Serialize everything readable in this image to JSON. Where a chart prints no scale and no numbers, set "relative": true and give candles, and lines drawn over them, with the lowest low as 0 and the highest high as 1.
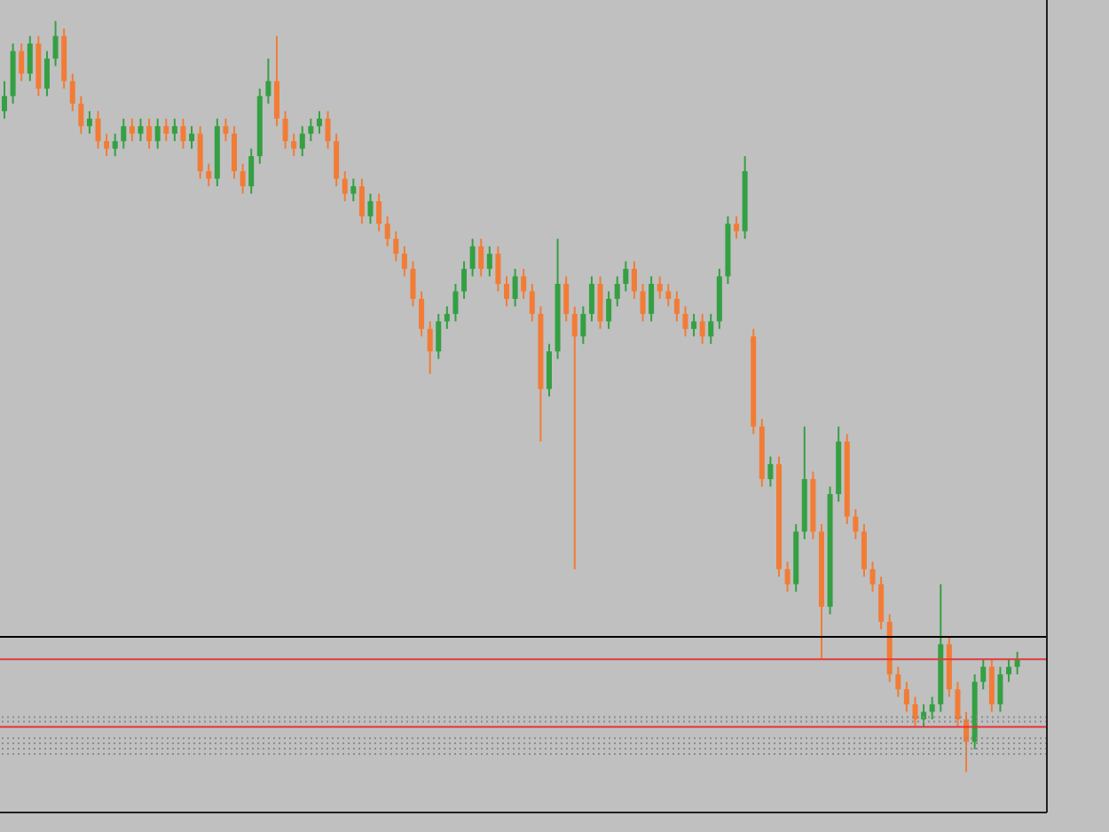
{
  "chart_data": {
    "type": "candlestick",
    "relative": true,
    "categories": [
      null,
      null,
      null,
      null,
      null,
      null,
      null,
      null,
      null,
      null,
      null,
      null,
      null,
      null,
      null,
      null,
      null,
      null,
      null,
      null,
      null,
      null,
      null,
      null,
      null,
      null,
      null,
      null,
      null,
      null,
      null,
      null,
      null,
      null,
      null,
      null,
      null,
      null,
      null,
      null,
      null,
      null,
      null,
      null,
      null,
      null,
      null,
      null,
      null,
      null,
      null,
      null,
      null,
      null,
      null,
      null,
      null,
      null,
      null,
      null,
      null,
      null,
      null,
      null,
      null,
      null,
      null,
      null,
      null,
      null,
      null,
      null,
      null,
      null,
      null,
      null,
      null,
      null,
      null,
      null,
      null,
      null,
      null,
      null,
      null,
      null,
      null,
      null,
      null,
      null,
      null,
      null,
      null,
      null,
      null,
      null,
      null,
      null,
      null,
      null,
      null,
      null,
      null,
      null,
      null,
      null,
      null,
      null,
      null,
      null,
      null,
      null,
      null,
      null,
      null,
      null,
      null,
      null,
      null,
      null,
      null,
      null,
      null
    ],
    "ohlc": [
      [
        0.88,
        0.92,
        0.87,
        0.9
      ],
      [
        0.9,
        0.97,
        0.89,
        0.96
      ],
      [
        0.96,
        0.97,
        0.92,
        0.93
      ],
      [
        0.93,
        0.98,
        0.92,
        0.97
      ],
      [
        0.97,
        0.98,
        0.9,
        0.91
      ],
      [
        0.91,
        0.96,
        0.9,
        0.95
      ],
      [
        0.95,
        1.0,
        0.94,
        0.98
      ],
      [
        0.98,
        0.99,
        0.91,
        0.92
      ],
      [
        0.92,
        0.93,
        0.88,
        0.89
      ],
      [
        0.89,
        0.9,
        0.85,
        0.86
      ],
      [
        0.86,
        0.88,
        0.85,
        0.87
      ],
      [
        0.87,
        0.88,
        0.83,
        0.84
      ],
      [
        0.84,
        0.85,
        0.82,
        0.83
      ],
      [
        0.83,
        0.85,
        0.82,
        0.84
      ],
      [
        0.84,
        0.87,
        0.83,
        0.86
      ],
      [
        0.86,
        0.87,
        0.84,
        0.85
      ],
      [
        0.85,
        0.87,
        0.84,
        0.86
      ],
      [
        0.86,
        0.87,
        0.83,
        0.84
      ],
      [
        0.84,
        0.87,
        0.83,
        0.86
      ],
      [
        0.86,
        0.87,
        0.84,
        0.85
      ],
      [
        0.85,
        0.87,
        0.84,
        0.86
      ],
      [
        0.86,
        0.87,
        0.83,
        0.84
      ],
      [
        0.84,
        0.86,
        0.83,
        0.85
      ],
      [
        0.85,
        0.86,
        0.79,
        0.8
      ],
      [
        0.8,
        0.81,
        0.78,
        0.79
      ],
      [
        0.79,
        0.87,
        0.78,
        0.86
      ],
      [
        0.86,
        0.87,
        0.84,
        0.85
      ],
      [
        0.85,
        0.86,
        0.79,
        0.8
      ],
      [
        0.8,
        0.81,
        0.77,
        0.78
      ],
      [
        0.78,
        0.83,
        0.77,
        0.82
      ],
      [
        0.82,
        0.91,
        0.81,
        0.9
      ],
      [
        0.9,
        0.95,
        0.89,
        0.92
      ],
      [
        0.92,
        0.98,
        0.86,
        0.87
      ],
      [
        0.87,
        0.88,
        0.83,
        0.84
      ],
      [
        0.84,
        0.85,
        0.82,
        0.83
      ],
      [
        0.83,
        0.86,
        0.82,
        0.85
      ],
      [
        0.85,
        0.87,
        0.84,
        0.86
      ],
      [
        0.86,
        0.88,
        0.85,
        0.87
      ],
      [
        0.87,
        0.88,
        0.83,
        0.84
      ],
      [
        0.84,
        0.85,
        0.78,
        0.79
      ],
      [
        0.79,
        0.8,
        0.76,
        0.77
      ],
      [
        0.77,
        0.79,
        0.76,
        0.78
      ],
      [
        0.78,
        0.79,
        0.73,
        0.74
      ],
      [
        0.74,
        0.77,
        0.73,
        0.76
      ],
      [
        0.76,
        0.77,
        0.72,
        0.73
      ],
      [
        0.73,
        0.74,
        0.7,
        0.71
      ],
      [
        0.71,
        0.72,
        0.68,
        0.69
      ],
      [
        0.69,
        0.7,
        0.66,
        0.67
      ],
      [
        0.67,
        0.68,
        0.62,
        0.63
      ],
      [
        0.63,
        0.64,
        0.58,
        0.59
      ],
      [
        0.59,
        0.6,
        0.53,
        0.56
      ],
      [
        0.56,
        0.61,
        0.55,
        0.6
      ],
      [
        0.6,
        0.62,
        0.59,
        0.61
      ],
      [
        0.61,
        0.65,
        0.6,
        0.64
      ],
      [
        0.64,
        0.68,
        0.63,
        0.67
      ],
      [
        0.67,
        0.71,
        0.66,
        0.7
      ],
      [
        0.7,
        0.71,
        0.66,
        0.67
      ],
      [
        0.67,
        0.7,
        0.66,
        0.69
      ],
      [
        0.69,
        0.7,
        0.64,
        0.65
      ],
      [
        0.65,
        0.66,
        0.62,
        0.63
      ],
      [
        0.63,
        0.67,
        0.62,
        0.66
      ],
      [
        0.66,
        0.67,
        0.63,
        0.64
      ],
      [
        0.64,
        0.65,
        0.6,
        0.61
      ],
      [
        0.61,
        0.62,
        0.44,
        0.51
      ],
      [
        0.51,
        0.57,
        0.5,
        0.56
      ],
      [
        0.56,
        0.71,
        0.55,
        0.65
      ],
      [
        0.65,
        0.66,
        0.6,
        0.61
      ],
      [
        0.61,
        0.62,
        0.27,
        0.58
      ],
      [
        0.58,
        0.62,
        0.57,
        0.61
      ],
      [
        0.61,
        0.66,
        0.6,
        0.65
      ],
      [
        0.65,
        0.66,
        0.59,
        0.6
      ],
      [
        0.6,
        0.64,
        0.59,
        0.63
      ],
      [
        0.63,
        0.66,
        0.62,
        0.65
      ],
      [
        0.65,
        0.68,
        0.64,
        0.67
      ],
      [
        0.67,
        0.68,
        0.63,
        0.64
      ],
      [
        0.64,
        0.65,
        0.6,
        0.61
      ],
      [
        0.61,
        0.66,
        0.6,
        0.65
      ],
      [
        0.65,
        0.66,
        0.63,
        0.64
      ],
      [
        0.64,
        0.65,
        0.62,
        0.63
      ],
      [
        0.63,
        0.64,
        0.6,
        0.61
      ],
      [
        0.61,
        0.62,
        0.58,
        0.59
      ],
      [
        0.59,
        0.61,
        0.58,
        0.6
      ],
      [
        0.6,
        0.61,
        0.57,
        0.58
      ],
      [
        0.58,
        0.61,
        0.57,
        0.6
      ],
      [
        0.6,
        0.67,
        0.59,
        0.66
      ],
      [
        0.66,
        0.74,
        0.65,
        0.73
      ],
      [
        0.73,
        0.74,
        0.71,
        0.72
      ],
      [
        0.72,
        0.82,
        0.71,
        0.8
      ],
      [
        0.58,
        0.59,
        0.45,
        0.46
      ],
      [
        0.46,
        0.47,
        0.38,
        0.39
      ],
      [
        0.39,
        0.42,
        0.38,
        0.41
      ],
      [
        0.41,
        0.42,
        0.26,
        0.27
      ],
      [
        0.27,
        0.28,
        0.24,
        0.25
      ],
      [
        0.25,
        0.33,
        0.24,
        0.32
      ],
      [
        0.32,
        0.46,
        0.31,
        0.39
      ],
      [
        0.39,
        0.4,
        0.31,
        0.32
      ],
      [
        0.32,
        0.33,
        0.15,
        0.22
      ],
      [
        0.22,
        0.38,
        0.21,
        0.37
      ],
      [
        0.37,
        0.46,
        0.36,
        0.44
      ],
      [
        0.44,
        0.45,
        0.33,
        0.34
      ],
      [
        0.34,
        0.35,
        0.31,
        0.32
      ],
      [
        0.32,
        0.33,
        0.26,
        0.27
      ],
      [
        0.27,
        0.28,
        0.24,
        0.25
      ],
      [
        0.25,
        0.26,
        0.19,
        0.2
      ],
      [
        0.2,
        0.21,
        0.12,
        0.13
      ],
      [
        0.13,
        0.14,
        0.1,
        0.11
      ],
      [
        0.11,
        0.12,
        0.08,
        0.09
      ],
      [
        0.09,
        0.1,
        0.06,
        0.07
      ],
      [
        0.07,
        0.09,
        0.06,
        0.08
      ],
      [
        0.08,
        0.1,
        0.07,
        0.09
      ],
      [
        0.09,
        0.25,
        0.08,
        0.17
      ],
      [
        0.17,
        0.18,
        0.1,
        0.11
      ],
      [
        0.11,
        0.12,
        0.06,
        0.07
      ],
      [
        0.07,
        0.08,
        0.0,
        0.04
      ],
      [
        0.04,
        0.13,
        0.03,
        0.12
      ],
      [
        0.12,
        0.15,
        0.11,
        0.14
      ],
      [
        0.14,
        0.15,
        0.08,
        0.09
      ],
      [
        0.09,
        0.14,
        0.08,
        0.13
      ],
      [
        0.13,
        0.15,
        0.12,
        0.14
      ],
      [
        0.14,
        0.16,
        0.13,
        0.15
      ],
      null,
      null,
      null
    ],
    "colors": [
      "#34a043",
      "#34a043",
      "#f27c36",
      "#34a043",
      "#f27c36",
      "#34a043",
      "#34a043",
      "#f27c36",
      "#f27c36",
      "#f27c36",
      "#34a043",
      "#f27c36",
      "#f27c36",
      "#34a043",
      "#34a043",
      "#f27c36",
      "#34a043",
      "#f27c36",
      "#34a043",
      "#f27c36",
      "#34a043",
      "#f27c36",
      "#34a043",
      "#f27c36",
      "#f27c36",
      "#34a043",
      "#f27c36",
      "#f27c36",
      "#f27c36",
      "#34a043",
      "#34a043",
      "#34a043",
      "#f27c36",
      "#f27c36",
      "#f27c36",
      "#34a043",
      "#34a043",
      "#34a043",
      "#f27c36",
      "#f27c36",
      "#f27c36",
      "#34a043",
      "#f27c36",
      "#34a043",
      "#f27c36",
      "#f27c36",
      "#f27c36",
      "#f27c36",
      "#f27c36",
      "#f27c36",
      "#f27c36",
      "#34a043",
      "#34a043",
      "#34a043",
      "#34a043",
      "#34a043",
      "#f27c36",
      "#34a043",
      "#f27c36",
      "#f27c36",
      "#34a043",
      "#f27c36",
      "#f27c36",
      "#f27c36",
      "#34a043",
      "#34a043",
      "#f27c36",
      "#f27c36",
      "#34a043",
      "#34a043",
      "#f27c36",
      "#34a043",
      "#34a043",
      "#34a043",
      "#f27c36",
      "#f27c36",
      "#34a043",
      "#f27c36",
      "#f27c36",
      "#f27c36",
      "#f27c36",
      "#34a043",
      "#f27c36",
      "#34a043",
      "#34a043",
      "#34a043",
      "#f27c36",
      "#34a043",
      "#f27c36",
      "#f27c36",
      "#34a043",
      "#f27c36",
      "#f27c36",
      "#34a043",
      "#34a043",
      "#f27c36",
      "#f27c36",
      "#34a043",
      "#34a043",
      "#f27c36",
      "#f27c36",
      "#f27c36",
      "#f27c36",
      "#f27c36",
      "#f27c36",
      "#f27c36",
      "#f27c36",
      "#f27c36",
      "#34a043",
      "#34a043",
      "#34a043",
      "#f27c36",
      "#f27c36",
      "#f27c36",
      "#34a043",
      "#34a043",
      "#f27c36",
      "#34a043",
      "#34a043",
      "#34a043",
      null,
      null,
      null
    ],
    "ref_lines": [
      {
        "axis": "y",
        "value": 0.18,
        "color": "#000000",
        "line_style": "solid"
      },
      {
        "axis": "y",
        "value": 0.15,
        "color": "#e03c3c",
        "line_style": "solid"
      },
      {
        "axis": "y",
        "value": 0.06,
        "color": "#e8303a",
        "line_style": "solid"
      },
      {
        "axis": "y",
        "value": 0.073,
        "color": "#8c8c8c",
        "line_style": "dotted"
      },
      {
        "axis": "y",
        "value": 0.067,
        "color": "#8c8c8c",
        "line_style": "dotted"
      },
      {
        "axis": "y",
        "value": 0.045,
        "color": "#8c8c8c",
        "line_style": "dotted"
      },
      {
        "axis": "y",
        "value": 0.038,
        "color": "#8c8c8c",
        "line_style": "dotted"
      },
      {
        "axis": "y",
        "value": 0.031,
        "color": "#8c8c8c",
        "line_style": "dotted"
      },
      {
        "axis": "y",
        "value": 0.024,
        "color": "#8c8c8c",
        "line_style": "dotted"
      }
    ],
    "grid": false,
    "legend": false
  }
}
